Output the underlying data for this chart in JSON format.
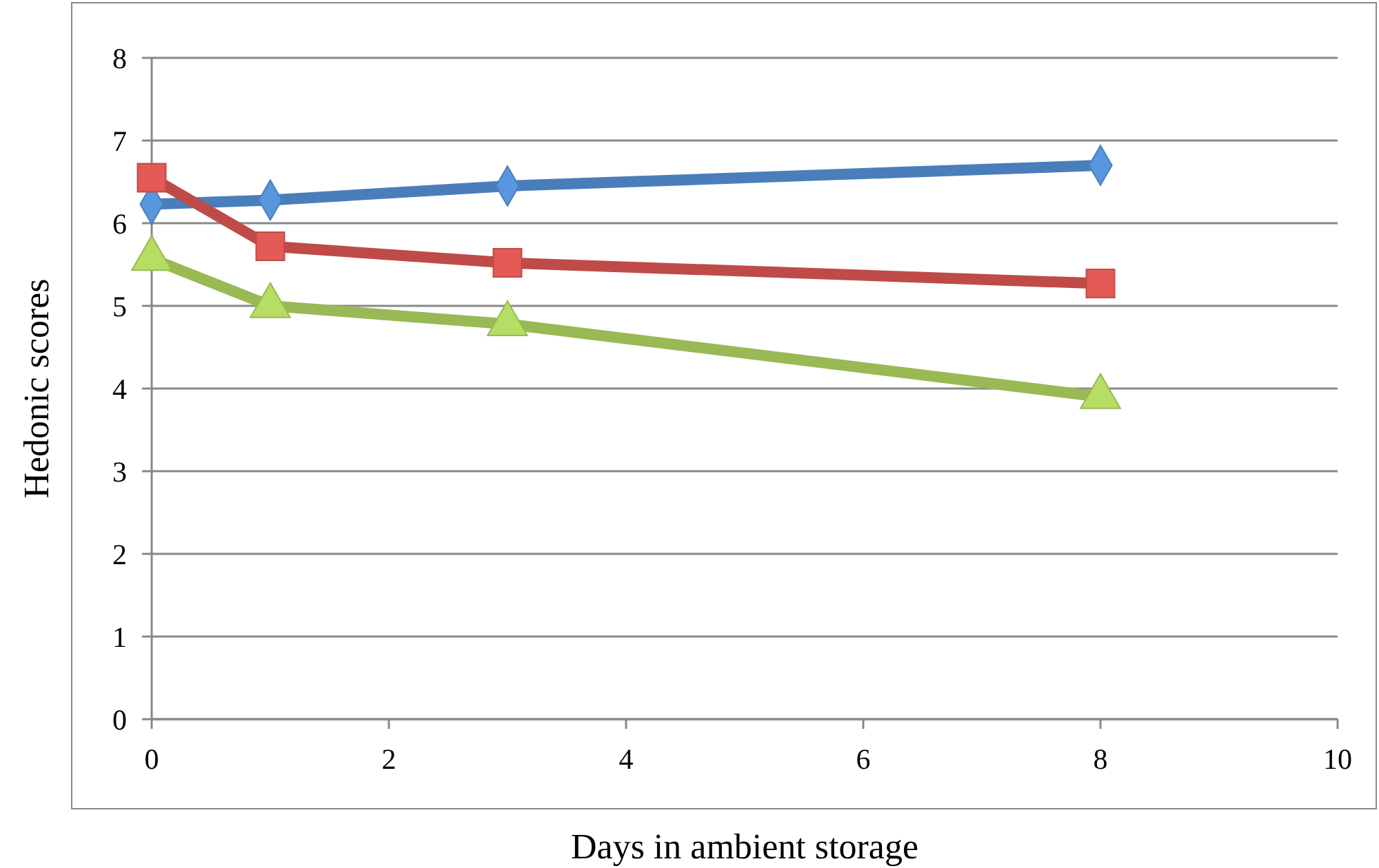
{
  "chart_data": {
    "type": "line",
    "xlabel": "Days in ambient storage",
    "ylabel": "Hedonic scores",
    "x": [
      0,
      1,
      3,
      8
    ],
    "xlim": [
      0,
      10
    ],
    "xticks": [
      0,
      2,
      4,
      6,
      8,
      10
    ],
    "ylim": [
      0,
      8
    ],
    "yticks": [
      0,
      1,
      2,
      3,
      4,
      5,
      6,
      7,
      8
    ],
    "grid": "y",
    "line_style": "solid",
    "series": [
      {
        "color": "#4a7ebb",
        "marker": "diamond",
        "values": [
          6.23,
          6.28,
          6.45,
          6.7
        ]
      },
      {
        "color": "#be4b48",
        "marker": "square",
        "values": [
          6.55,
          5.72,
          5.52,
          5.27
        ]
      },
      {
        "color": "#98b954",
        "marker": "triangle",
        "values": [
          5.57,
          5.0,
          4.78,
          3.9
        ]
      }
    ]
  }
}
